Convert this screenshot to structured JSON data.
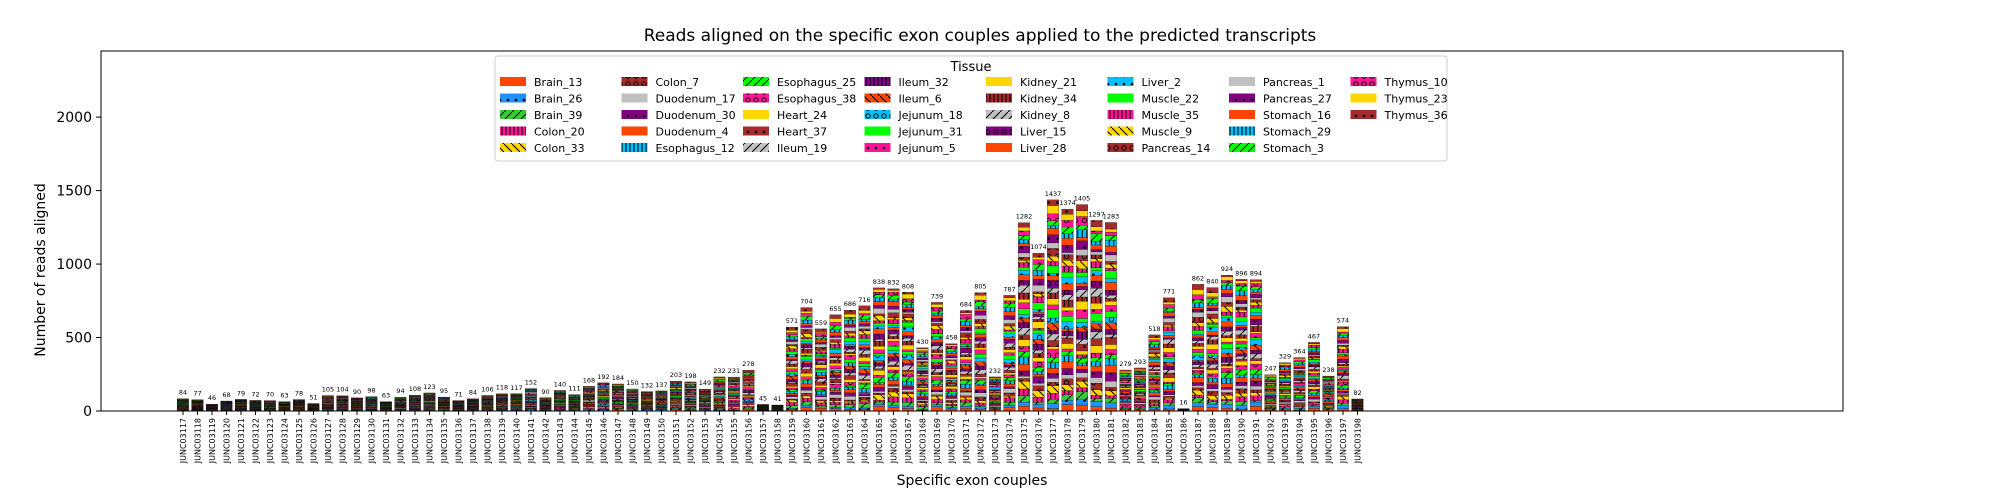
{
  "chart_data": {
    "type": "bar",
    "stacked": true,
    "title": "Reads aligned on the specific exon couples applied to the predicted transcripts",
    "xlabel": "Specific exon couples",
    "ylabel": "Number of reads aligned",
    "ylim": [
      0,
      2450
    ],
    "yticks": [
      0,
      500,
      1000,
      1500,
      2000
    ],
    "grid": false,
    "legend": {
      "title": "Tissue",
      "placement": "top-center",
      "columns": 8
    },
    "categories": [
      "JUNC03117",
      "JUNC03118",
      "JUNC03119",
      "JUNC03120",
      "JUNC03121",
      "JUNC03122",
      "JUNC03123",
      "JUNC03124",
      "JUNC03125",
      "JUNC03126",
      "JUNC03127",
      "JUNC03128",
      "JUNC03129",
      "JUNC03130",
      "JUNC03131",
      "JUNC03132",
      "JUNC03133",
      "JUNC03134",
      "JUNC03135",
      "JUNC03136",
      "JUNC03137",
      "JUNC03138",
      "JUNC03139",
      "JUNC03140",
      "JUNC03141",
      "JUNC03142",
      "JUNC03143",
      "JUNC03144",
      "JUNC03145",
      "JUNC03146",
      "JUNC03147",
      "JUNC03148",
      "JUNC03149",
      "JUNC03150",
      "JUNC03151",
      "JUNC03152",
      "JUNC03153",
      "JUNC03154",
      "JUNC03155",
      "JUNC03156",
      "JUNC03157",
      "JUNC03158",
      "JUNC03159",
      "JUNC03160",
      "JUNC03161",
      "JUNC03162",
      "JUNC03163",
      "JUNC03164",
      "JUNC03165",
      "JUNC03166",
      "JUNC03167",
      "JUNC03168",
      "JUNC03169",
      "JUNC03170",
      "JUNC03171",
      "JUNC03172",
      "JUNC03173",
      "JUNC03174",
      "JUNC03175",
      "JUNC03176",
      "JUNC03177",
      "JUNC03178",
      "JUNC03179",
      "JUNC03180",
      "JUNC03181",
      "JUNC03182",
      "JUNC03183",
      "JUNC03184",
      "JUNC03185",
      "JUNC03186",
      "JUNC03187",
      "JUNC03188",
      "JUNC03189",
      "JUNC03190",
      "JUNC03191",
      "JUNC03192",
      "JUNC03193",
      "JUNC03194",
      "JUNC03195",
      "JUNC03196",
      "JUNC03197",
      "JUNC03198"
    ],
    "totals": [
      84,
      77,
      46,
      68,
      79,
      72,
      70,
      63,
      78,
      51,
      105,
      104,
      90,
      98,
      63,
      94,
      108,
      123,
      95,
      71,
      84,
      106,
      118,
      117,
      152,
      90,
      140,
      111,
      168,
      192,
      184,
      150,
      132,
      137,
      203,
      198,
      149,
      232,
      231,
      278,
      45,
      41,
      571,
      704,
      559,
      655,
      686,
      716,
      838,
      832,
      808,
      430,
      739,
      458,
      684,
      805,
      232,
      787,
      1282,
      1074,
      1437,
      1374,
      1405,
      1297,
      1283,
      279,
      293,
      518,
      771,
      16,
      862,
      840,
      924,
      896,
      894,
      247,
      329,
      364,
      467,
      238,
      574,
      82
    ],
    "series": [
      {
        "name": "Brain_13",
        "color": "#ff4500",
        "hatch": "none"
      },
      {
        "name": "Brain_26",
        "color": "#1e90ff",
        "hatch": "dot"
      },
      {
        "name": "Brain_39",
        "color": "#32cd32",
        "hatch": "slash"
      },
      {
        "name": "Colon_20",
        "color": "#ff1493",
        "hatch": "vline"
      },
      {
        "name": "Colon_33",
        "color": "#ffd700",
        "hatch": "backslash"
      },
      {
        "name": "Colon_7",
        "color": "#a52a2a",
        "hatch": "ring"
      },
      {
        "name": "Duodenum_17",
        "color": "#c0c0c0",
        "hatch": "none"
      },
      {
        "name": "Duodenum_30",
        "color": "#800080",
        "hatch": "dot"
      },
      {
        "name": "Duodenum_4",
        "color": "#ff4500",
        "hatch": "none"
      },
      {
        "name": "Esophagus_12",
        "color": "#00bfff",
        "hatch": "vline"
      },
      {
        "name": "Esophagus_25",
        "color": "#00ff00",
        "hatch": "slash"
      },
      {
        "name": "Esophagus_38",
        "color": "#ff1493",
        "hatch": "ring"
      },
      {
        "name": "Heart_24",
        "color": "#ffd700",
        "hatch": "none"
      },
      {
        "name": "Heart_37",
        "color": "#a52a2a",
        "hatch": "dot"
      },
      {
        "name": "Ileum_19",
        "color": "#c0c0c0",
        "hatch": "slash"
      },
      {
        "name": "Ileum_32",
        "color": "#800080",
        "hatch": "vline"
      },
      {
        "name": "Ileum_6",
        "color": "#ff4500",
        "hatch": "backslash"
      },
      {
        "name": "Jejunum_18",
        "color": "#00bfff",
        "hatch": "ring"
      },
      {
        "name": "Jejunum_31",
        "color": "#00ff00",
        "hatch": "none"
      },
      {
        "name": "Jejunum_5",
        "color": "#ff1493",
        "hatch": "dot"
      },
      {
        "name": "Kidney_21",
        "color": "#ffd700",
        "hatch": "none"
      },
      {
        "name": "Kidney_34",
        "color": "#a52a2a",
        "hatch": "vline"
      },
      {
        "name": "Kidney_8",
        "color": "#c0c0c0",
        "hatch": "slash"
      },
      {
        "name": "Liver_15",
        "color": "#800080",
        "hatch": "ring"
      },
      {
        "name": "Liver_28",
        "color": "#ff4500",
        "hatch": "none"
      },
      {
        "name": "Liver_2",
        "color": "#00bfff",
        "hatch": "dot"
      },
      {
        "name": "Muscle_22",
        "color": "#00ff00",
        "hatch": "none"
      },
      {
        "name": "Muscle_35",
        "color": "#ff1493",
        "hatch": "vline"
      },
      {
        "name": "Muscle_9",
        "color": "#ffd700",
        "hatch": "backslash"
      },
      {
        "name": "Pancreas_14",
        "color": "#a52a2a",
        "hatch": "ring"
      },
      {
        "name": "Pancreas_1",
        "color": "#c0c0c0",
        "hatch": "none"
      },
      {
        "name": "Pancreas_27",
        "color": "#800080",
        "hatch": "dot"
      },
      {
        "name": "Stomach_16",
        "color": "#ff4500",
        "hatch": "none"
      },
      {
        "name": "Stomach_29",
        "color": "#00bfff",
        "hatch": "vline"
      },
      {
        "name": "Stomach_3",
        "color": "#00ff00",
        "hatch": "slash"
      },
      {
        "name": "Thymus_10",
        "color": "#ff1493",
        "hatch": "ring"
      },
      {
        "name": "Thymus_23",
        "color": "#ffd700",
        "hatch": "none"
      },
      {
        "name": "Thymus_36",
        "color": "#a52a2a",
        "hatch": "dot"
      }
    ]
  }
}
